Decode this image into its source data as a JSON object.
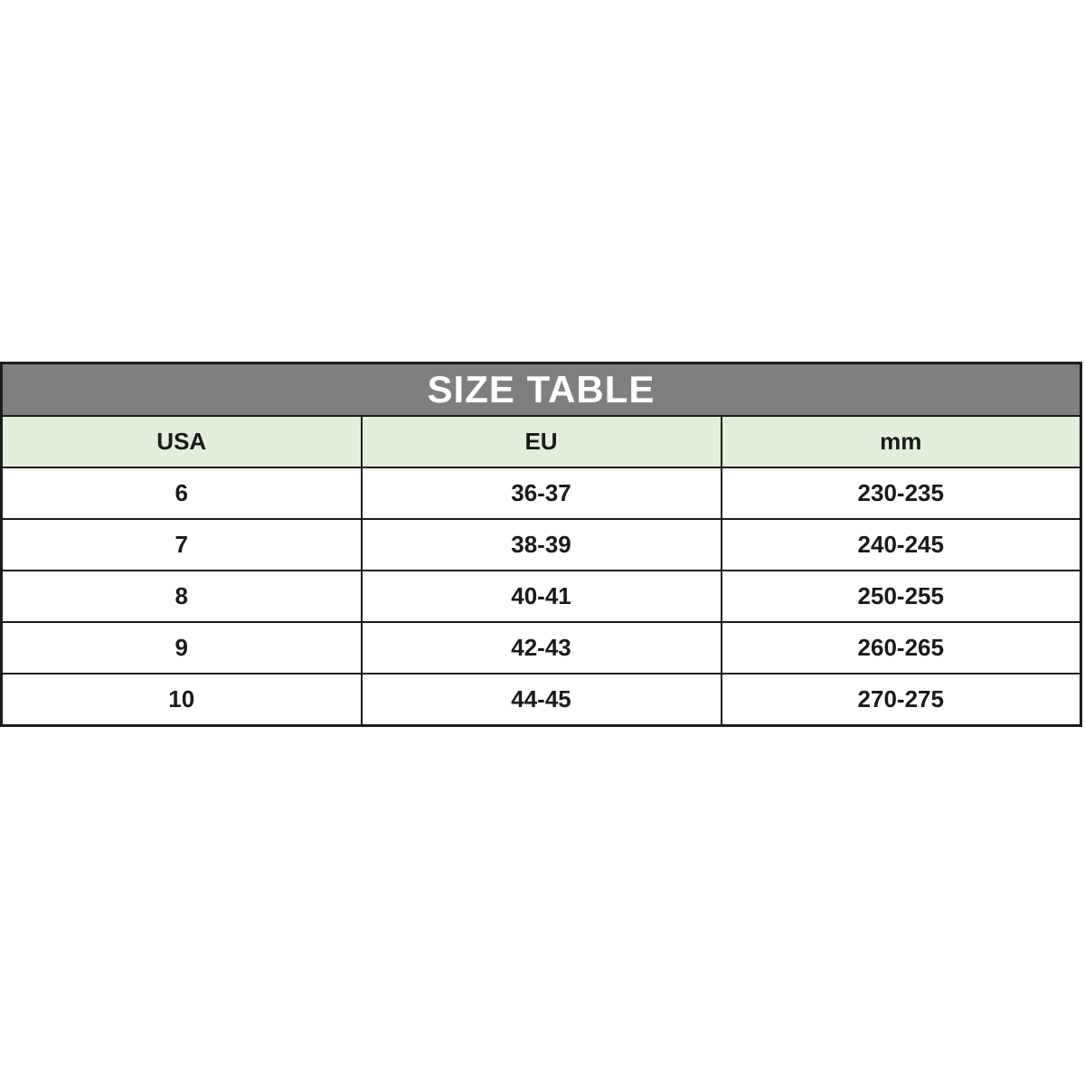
{
  "table": {
    "title": "SIZE TABLE",
    "columns": [
      "USA",
      "EU",
      "mm"
    ],
    "rows": [
      [
        "6",
        "36-37",
        "230-235"
      ],
      [
        "7",
        "38-39",
        "240-245"
      ],
      [
        "8",
        "40-41",
        "250-255"
      ],
      [
        "9",
        "42-43",
        "260-265"
      ],
      [
        "10",
        "44-45",
        "270-275"
      ]
    ]
  },
  "colors": {
    "title_background": "#7f7f7f",
    "title_text": "#ffffff",
    "header_background": "#e2efda",
    "cell_background": "#ffffff",
    "border": "#1b1b1b",
    "text": "#1a1a1a"
  }
}
